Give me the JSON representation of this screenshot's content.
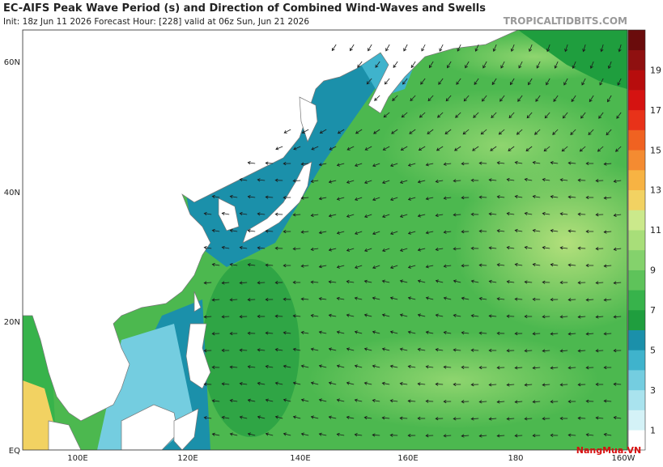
{
  "header": {
    "title": "EC-AIFS Peak Wave Period (s) and Direction of Combined Wind-Waves and Swells",
    "subtitle": "Init: 18z Jun 11 2026   Forecast Hour: [228]   valid at 06z Sun, Jun 21 2026",
    "site": "TROPICALTIDBITS.COM"
  },
  "map": {
    "lat_labels": [
      "60N",
      "40N",
      "20N",
      "EQ"
    ],
    "lon_labels": [
      "100E",
      "120E",
      "140E",
      "160E",
      "180",
      "160W"
    ]
  },
  "colorbar": {
    "labels": [
      1,
      3,
      5,
      7,
      9,
      11,
      13,
      15,
      17,
      19
    ],
    "colors": [
      "#ffffff",
      "#d4f2f7",
      "#a9e3ee",
      "#74cde0",
      "#3fb3cc",
      "#1b90aa",
      "#1f9e3e",
      "#37b34b",
      "#5ec35a",
      "#84d26c",
      "#a8de79",
      "#cbe98b",
      "#f2d262",
      "#f7b343",
      "#f48b31",
      "#f06221",
      "#e83219",
      "#d51311",
      "#b70d0d",
      "#8f1010",
      "#6a0c0c"
    ]
  },
  "watermark": "NangMua.VN"
}
